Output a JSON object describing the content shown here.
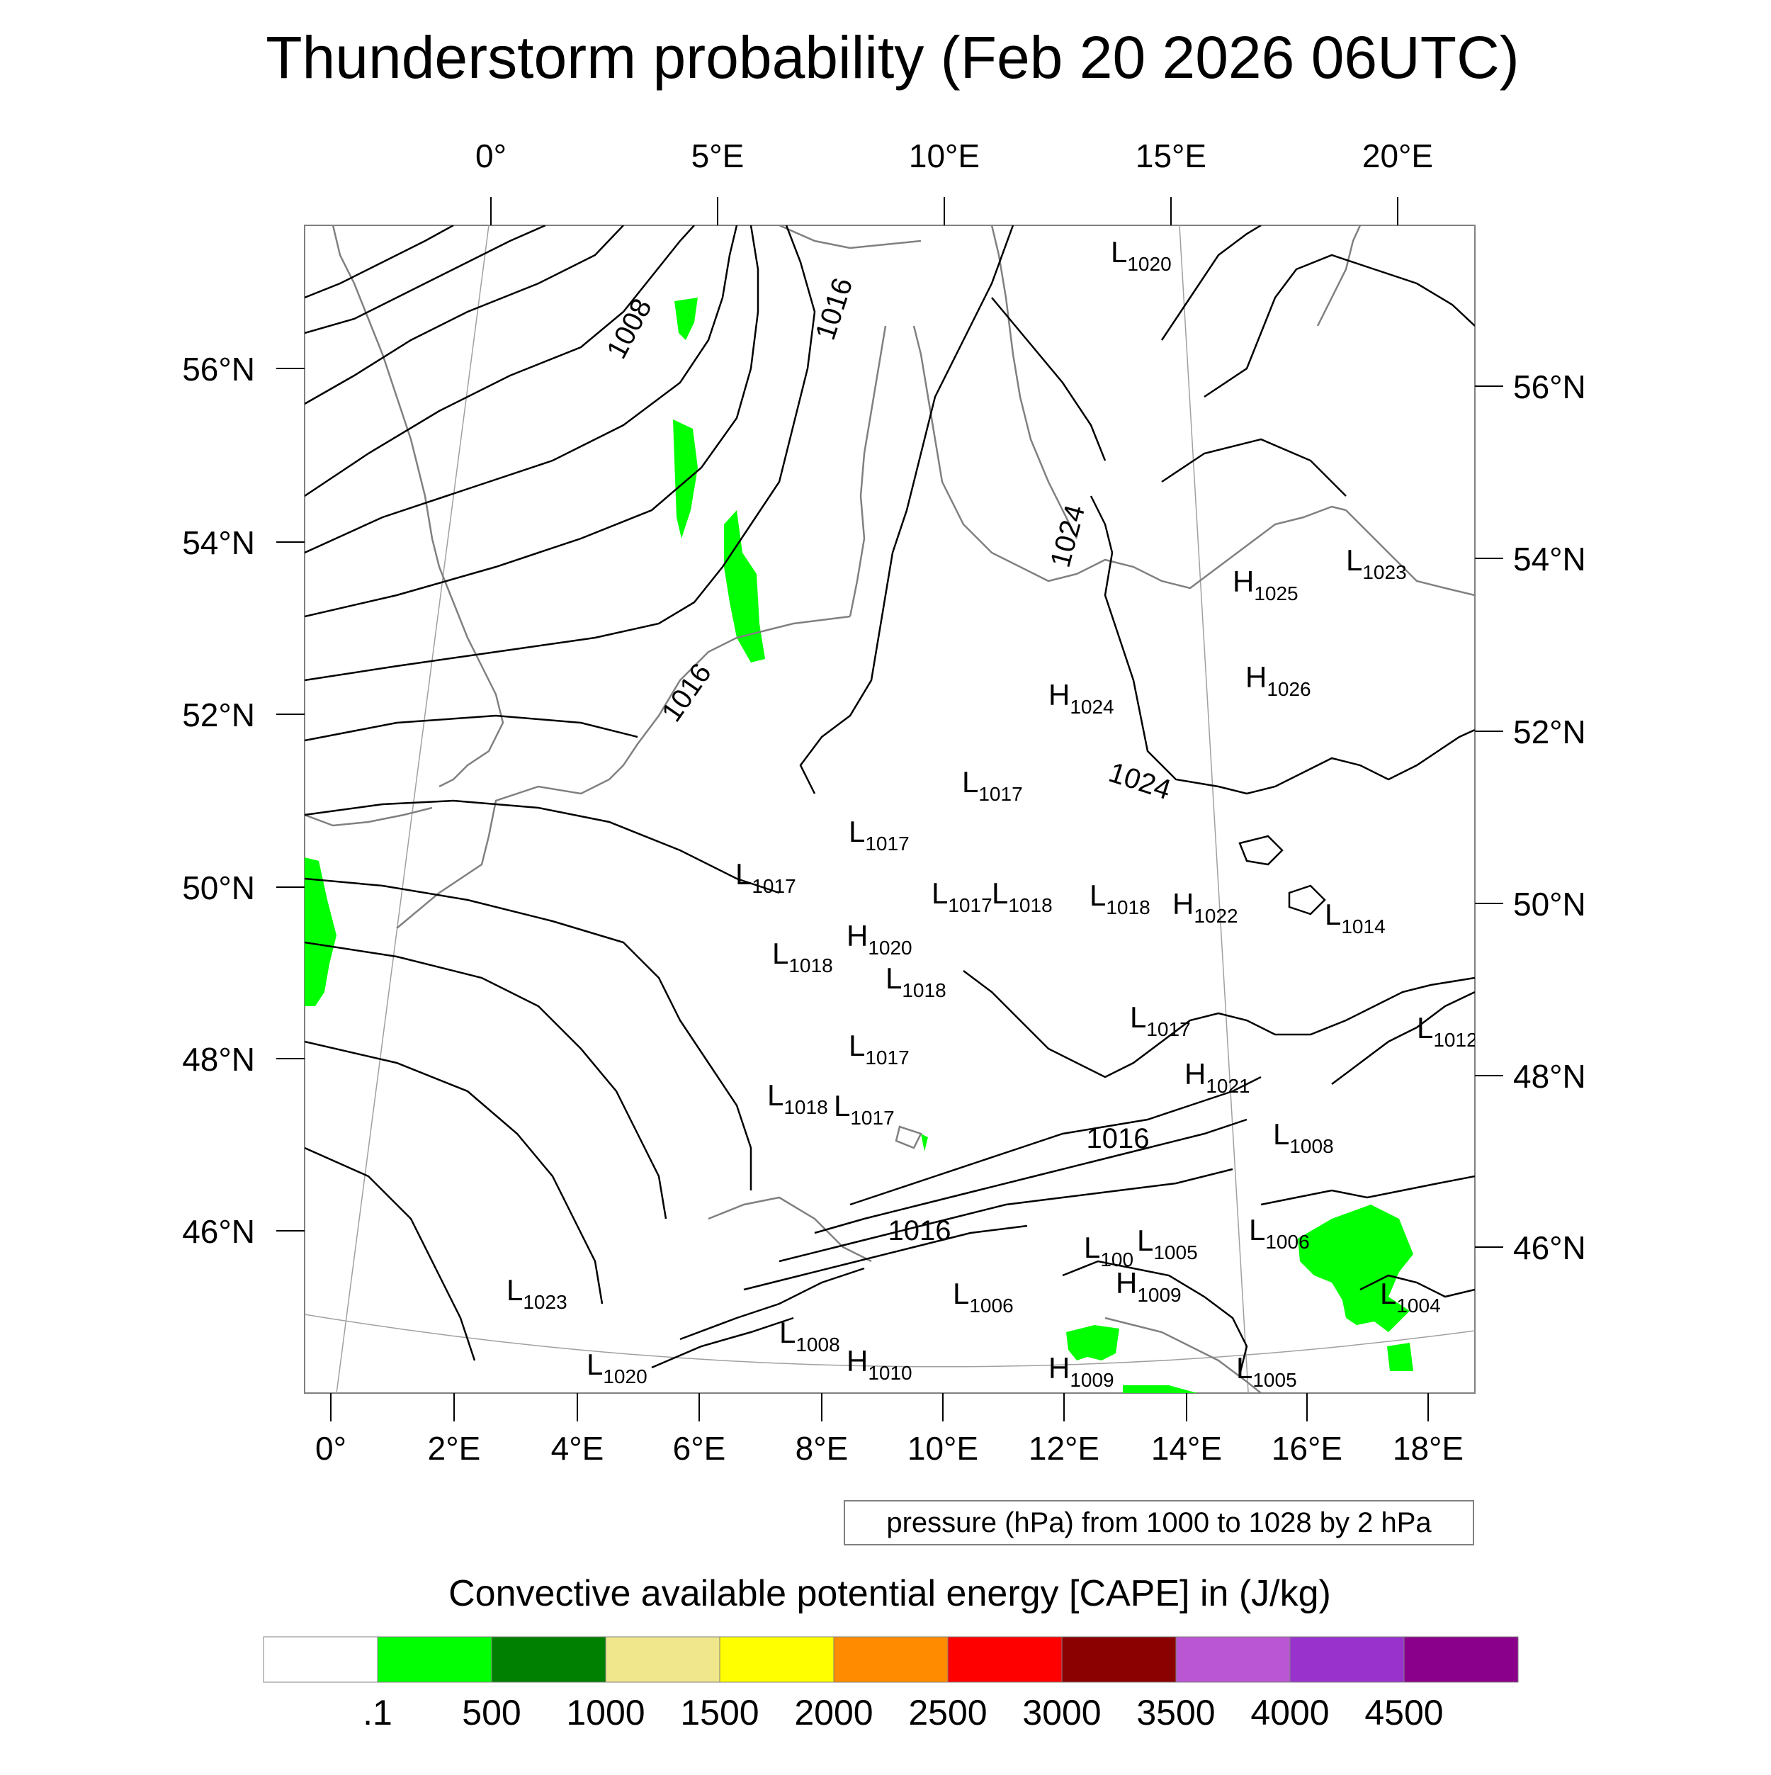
{
  "title": "Thunderstorm probability (Feb 20 2026 06UTC)",
  "top_lon_labels": [
    "0°",
    "5°E",
    "10°E",
    "15°E",
    "20°E"
  ],
  "right_lat_labels": [
    "56°N",
    "54°N",
    "52°N",
    "50°N",
    "48°N",
    "46°N"
  ],
  "left_lat_labels": [
    "56°N",
    "54°N",
    "52°N",
    "50°N",
    "48°N",
    "46°N"
  ],
  "bottom_lon_labels": [
    "0°",
    "2°E",
    "4°E",
    "6°E",
    "8°E",
    "10°E",
    "12°E",
    "14°E",
    "16°E",
    "18°E"
  ],
  "isobar_labels": [
    "1008",
    "1016",
    "1016",
    "1024",
    "1024",
    "1016",
    "1016"
  ],
  "pressure_centers": [
    {
      "type": "L",
      "value": "1020"
    },
    {
      "type": "L",
      "value": "1023"
    },
    {
      "type": "H",
      "value": "1025"
    },
    {
      "type": "H",
      "value": "1026"
    },
    {
      "type": "H",
      "value": "1024"
    },
    {
      "type": "L",
      "value": "1017"
    },
    {
      "type": "L",
      "value": "1017"
    },
    {
      "type": "L",
      "value": "1017"
    },
    {
      "type": "L",
      "value": "1017"
    },
    {
      "type": "L",
      "value": "1018"
    },
    {
      "type": "L",
      "value": "1018"
    },
    {
      "type": "H",
      "value": "1022"
    },
    {
      "type": "L",
      "value": "1014"
    },
    {
      "type": "L",
      "value": "1018"
    },
    {
      "type": "H",
      "value": "1020"
    },
    {
      "type": "L",
      "value": "1018"
    },
    {
      "type": "L",
      "value": "1017"
    },
    {
      "type": "L",
      "value": "1012"
    },
    {
      "type": "L",
      "value": "1017"
    },
    {
      "type": "H",
      "value": "1021"
    },
    {
      "type": "L",
      "value": "1018"
    },
    {
      "type": "L",
      "value": "1017"
    },
    {
      "type": "L",
      "value": "1008"
    },
    {
      "type": "L",
      "value": "1006"
    },
    {
      "type": "L",
      "value": "100"
    },
    {
      "type": "L",
      "value": "1005"
    },
    {
      "type": "H",
      "value": "1009"
    },
    {
      "type": "L",
      "value": "1006"
    },
    {
      "type": "L",
      "value": "1004"
    },
    {
      "type": "L",
      "value": "1023"
    },
    {
      "type": "L",
      "value": "1008"
    },
    {
      "type": "H",
      "value": "1010"
    },
    {
      "type": "L",
      "value": "1020"
    },
    {
      "type": "H",
      "value": "1009"
    },
    {
      "type": "L",
      "value": "1005"
    }
  ],
  "contour_info": "pressure (hPa) from 1000 to 1028 by 2 hPa",
  "colorbar": {
    "title": "Convective available potential energy [CAPE] in (J/kg)",
    "colors": [
      "#ffffff",
      "#00ff00",
      "#008000",
      "#f0e68c",
      "#ffff00",
      "#ff8c00",
      "#ff0000",
      "#8b0000",
      "#ba55d3",
      "#9932cc",
      "#8b008b"
    ],
    "labels": [
      ".1",
      "500",
      "1000",
      "1500",
      "2000",
      "2500",
      "3000",
      "3500",
      "4000",
      "4500"
    ]
  },
  "colors": {
    "cape_green": "#00ff00",
    "coast": "#808080",
    "isobar": "#000000"
  }
}
